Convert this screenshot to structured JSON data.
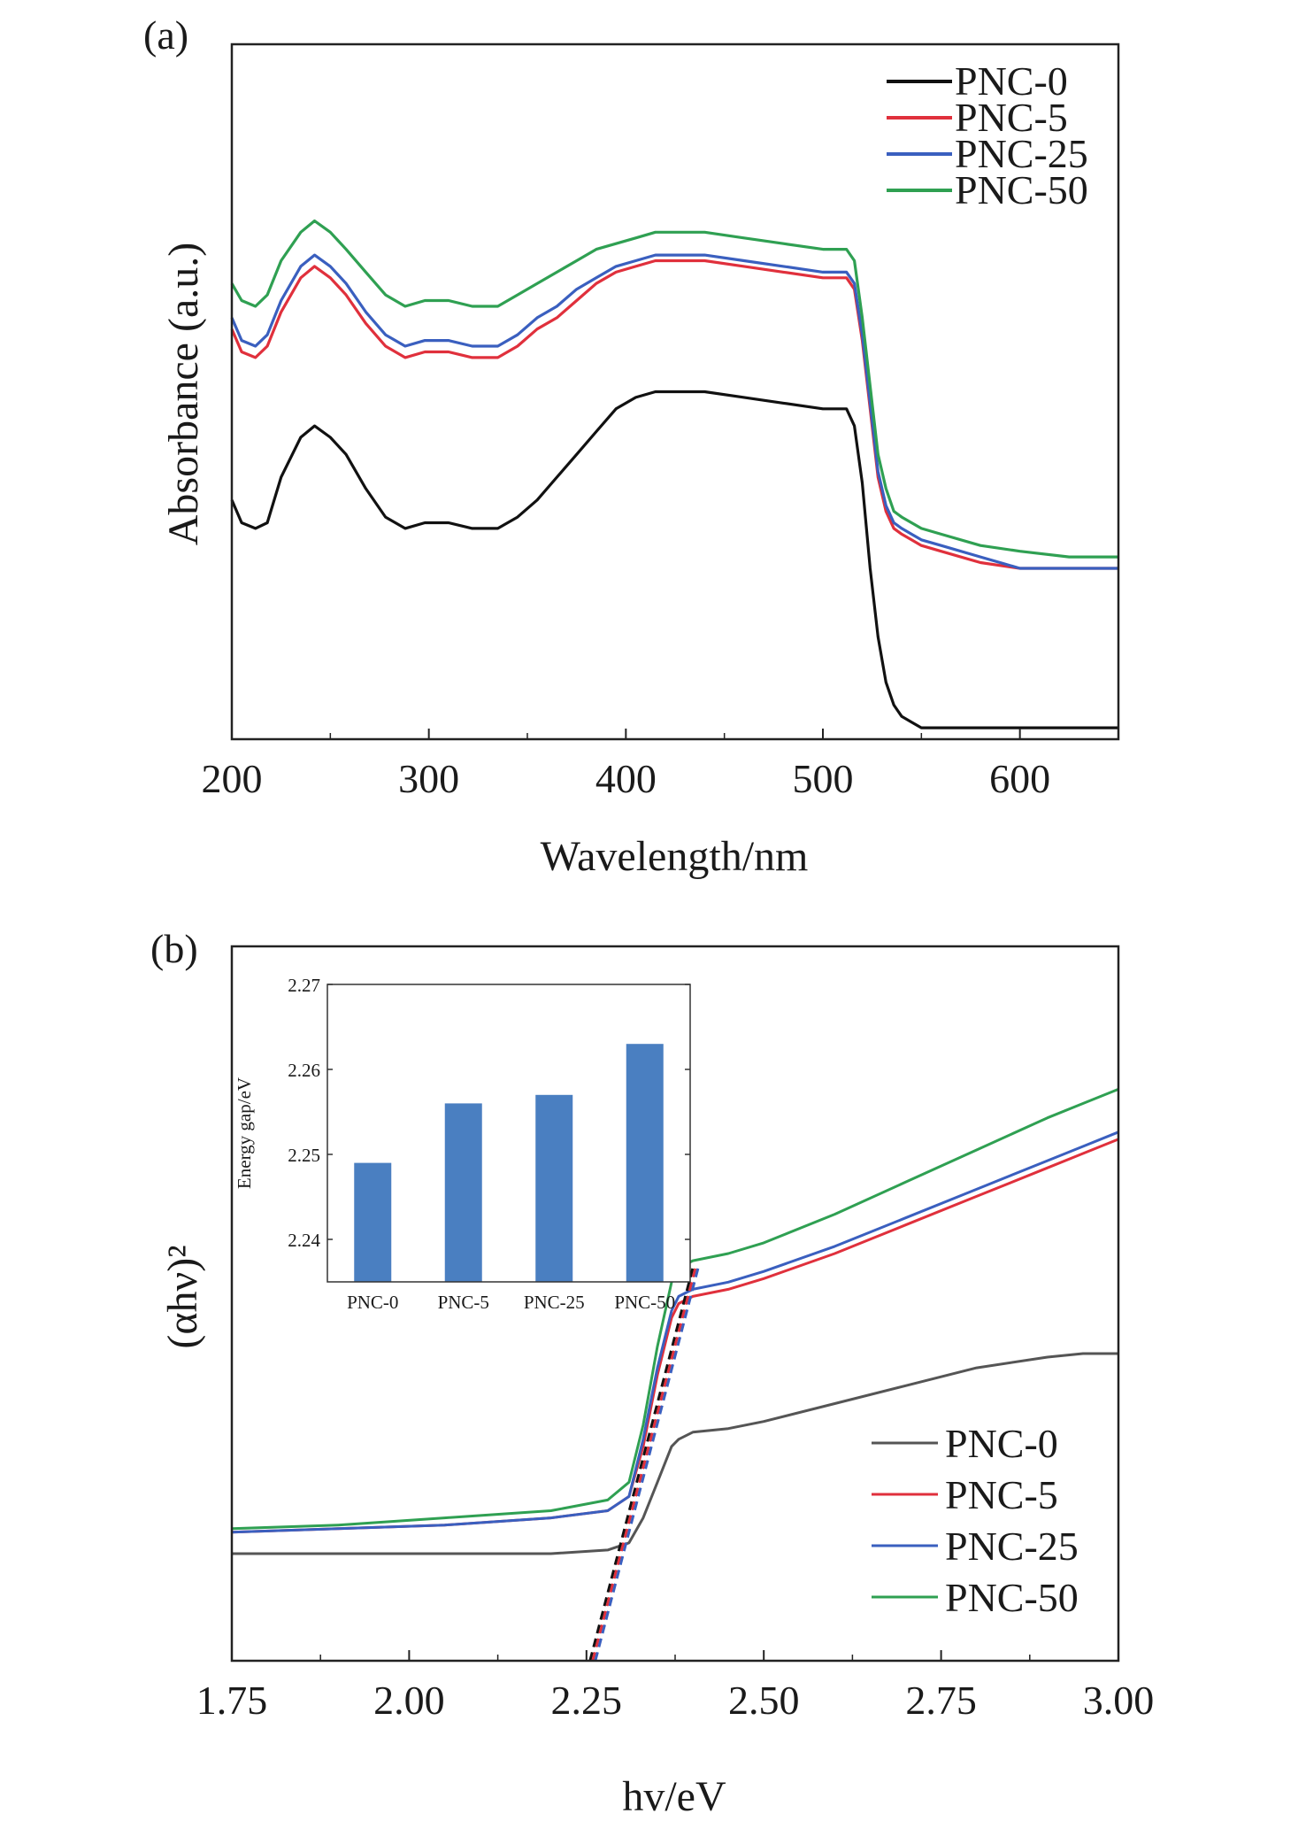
{
  "panel_a_label": "(a)",
  "panel_b_label": "(b)",
  "colors": {
    "pnc0": "#111111",
    "pnc5": "#e0303c",
    "pnc25": "#3a5fbf",
    "pnc50": "#2fa052",
    "pnc0_b": "#555555",
    "bar": "#4a7fc1"
  },
  "chart_data": [
    {
      "type": "line",
      "panel": "a",
      "xlabel": "Wavelength/nm",
      "ylabel": "Absorbance (a.u.)",
      "xlim": [
        200,
        650
      ],
      "ylim": [
        0,
        1.22
      ],
      "xticks": [
        "200",
        "300",
        "400",
        "500",
        "600"
      ],
      "yticks_shown": false,
      "legend_position": "top-right",
      "series": [
        {
          "name": "PNC-0",
          "color": "#111111",
          "x": [
            200,
            205,
            212,
            218,
            225,
            235,
            242,
            250,
            258,
            268,
            278,
            288,
            298,
            310,
            322,
            335,
            345,
            355,
            365,
            375,
            385,
            395,
            405,
            415,
            425,
            440,
            460,
            480,
            500,
            512,
            516,
            520,
            524,
            528,
            532,
            536,
            540,
            545,
            550,
            560,
            580,
            600,
            625,
            650
          ],
          "y": [
            0.42,
            0.38,
            0.37,
            0.38,
            0.46,
            0.53,
            0.55,
            0.53,
            0.5,
            0.44,
            0.39,
            0.37,
            0.38,
            0.38,
            0.37,
            0.37,
            0.39,
            0.42,
            0.46,
            0.5,
            0.54,
            0.58,
            0.6,
            0.61,
            0.61,
            0.61,
            0.6,
            0.59,
            0.58,
            0.58,
            0.55,
            0.45,
            0.3,
            0.18,
            0.1,
            0.06,
            0.04,
            0.03,
            0.02,
            0.02,
            0.02,
            0.02,
            0.02,
            0.02
          ]
        },
        {
          "name": "PNC-5",
          "color": "#e0303c",
          "x": [
            200,
            205,
            212,
            218,
            225,
            235,
            242,
            250,
            258,
            268,
            278,
            288,
            298,
            310,
            322,
            335,
            345,
            355,
            365,
            375,
            385,
            395,
            405,
            415,
            425,
            440,
            460,
            480,
            500,
            512,
            516,
            520,
            524,
            528,
            532,
            536,
            540,
            545,
            550,
            560,
            580,
            600,
            625,
            650
          ],
          "y": [
            0.72,
            0.68,
            0.67,
            0.69,
            0.75,
            0.81,
            0.83,
            0.81,
            0.78,
            0.73,
            0.69,
            0.67,
            0.68,
            0.68,
            0.67,
            0.67,
            0.69,
            0.72,
            0.74,
            0.77,
            0.8,
            0.82,
            0.83,
            0.84,
            0.84,
            0.84,
            0.83,
            0.82,
            0.81,
            0.81,
            0.79,
            0.7,
            0.58,
            0.46,
            0.4,
            0.37,
            0.36,
            0.35,
            0.34,
            0.33,
            0.31,
            0.3,
            0.3,
            0.3
          ]
        },
        {
          "name": "PNC-25",
          "color": "#3a5fbf",
          "x": [
            200,
            205,
            212,
            218,
            225,
            235,
            242,
            250,
            258,
            268,
            278,
            288,
            298,
            310,
            322,
            335,
            345,
            355,
            365,
            375,
            385,
            395,
            405,
            415,
            425,
            440,
            460,
            480,
            500,
            512,
            516,
            520,
            524,
            528,
            532,
            536,
            540,
            545,
            550,
            560,
            580,
            600,
            625,
            650
          ],
          "y": [
            0.74,
            0.7,
            0.69,
            0.71,
            0.77,
            0.83,
            0.85,
            0.83,
            0.8,
            0.75,
            0.71,
            0.69,
            0.7,
            0.7,
            0.69,
            0.69,
            0.71,
            0.74,
            0.76,
            0.79,
            0.81,
            0.83,
            0.84,
            0.85,
            0.85,
            0.85,
            0.84,
            0.83,
            0.82,
            0.82,
            0.8,
            0.71,
            0.59,
            0.47,
            0.41,
            0.38,
            0.37,
            0.36,
            0.35,
            0.34,
            0.32,
            0.3,
            0.3,
            0.3
          ]
        },
        {
          "name": "PNC-50",
          "color": "#2fa052",
          "x": [
            200,
            205,
            212,
            218,
            225,
            235,
            242,
            250,
            258,
            268,
            278,
            288,
            298,
            310,
            322,
            335,
            345,
            355,
            365,
            375,
            385,
            395,
            405,
            415,
            425,
            440,
            460,
            480,
            500,
            512,
            516,
            520,
            524,
            528,
            532,
            536,
            540,
            545,
            550,
            560,
            580,
            600,
            625,
            650
          ],
          "y": [
            0.8,
            0.77,
            0.76,
            0.78,
            0.84,
            0.89,
            0.91,
            0.89,
            0.86,
            0.82,
            0.78,
            0.76,
            0.77,
            0.77,
            0.76,
            0.76,
            0.78,
            0.8,
            0.82,
            0.84,
            0.86,
            0.87,
            0.88,
            0.89,
            0.89,
            0.89,
            0.88,
            0.87,
            0.86,
            0.86,
            0.84,
            0.74,
            0.62,
            0.5,
            0.44,
            0.4,
            0.39,
            0.38,
            0.37,
            0.36,
            0.34,
            0.33,
            0.32,
            0.32
          ]
        }
      ]
    },
    {
      "type": "line",
      "panel": "b",
      "xlabel": "hv/eV",
      "ylabel": "(αhν)²",
      "xlim": [
        1.75,
        3.0
      ],
      "ylim": [
        0,
        1.0
      ],
      "xticks": [
        "1.75",
        "2.00",
        "2.25",
        "2.50",
        "2.75",
        "3.00"
      ],
      "yticks_shown": false,
      "legend_position": "bottom-right",
      "series": [
        {
          "name": "PNC-0",
          "color": "#555555",
          "x": [
            1.75,
            1.9,
            2.05,
            2.2,
            2.28,
            2.31,
            2.33,
            2.35,
            2.37,
            2.38,
            2.4,
            2.45,
            2.5,
            2.6,
            2.7,
            2.8,
            2.9,
            2.95,
            3.0
          ],
          "y": [
            0.15,
            0.15,
            0.15,
            0.15,
            0.155,
            0.165,
            0.2,
            0.25,
            0.3,
            0.31,
            0.32,
            0.325,
            0.335,
            0.36,
            0.385,
            0.41,
            0.425,
            0.43,
            0.43
          ]
        },
        {
          "name": "PNC-5",
          "color": "#e0303c",
          "x": [
            1.75,
            1.9,
            2.05,
            2.2,
            2.28,
            2.31,
            2.33,
            2.35,
            2.37,
            2.38,
            2.4,
            2.45,
            2.5,
            2.6,
            2.7,
            2.8,
            2.9,
            2.95,
            3.0
          ],
          "y": [
            0.18,
            0.185,
            0.19,
            0.2,
            0.21,
            0.23,
            0.3,
            0.4,
            0.48,
            0.5,
            0.51,
            0.52,
            0.535,
            0.57,
            0.61,
            0.65,
            0.69,
            0.71,
            0.73
          ]
        },
        {
          "name": "PNC-25",
          "color": "#3a5fbf",
          "x": [
            1.75,
            1.9,
            2.05,
            2.2,
            2.28,
            2.31,
            2.33,
            2.35,
            2.37,
            2.38,
            2.4,
            2.45,
            2.5,
            2.6,
            2.7,
            2.8,
            2.9,
            2.95,
            3.0
          ],
          "y": [
            0.18,
            0.185,
            0.19,
            0.2,
            0.21,
            0.23,
            0.31,
            0.41,
            0.49,
            0.51,
            0.52,
            0.53,
            0.545,
            0.58,
            0.62,
            0.66,
            0.7,
            0.72,
            0.74
          ]
        },
        {
          "name": "PNC-50",
          "color": "#2fa052",
          "x": [
            1.75,
            1.9,
            2.05,
            2.2,
            2.28,
            2.31,
            2.33,
            2.35,
            2.37,
            2.38,
            2.4,
            2.45,
            2.5,
            2.6,
            2.7,
            2.8,
            2.9,
            2.95,
            3.0
          ],
          "y": [
            0.185,
            0.19,
            0.2,
            0.21,
            0.225,
            0.25,
            0.33,
            0.44,
            0.53,
            0.55,
            0.56,
            0.57,
            0.585,
            0.625,
            0.67,
            0.715,
            0.76,
            0.78,
            0.8
          ]
        }
      ],
      "fit_lines": [
        {
          "x": [
            2.255,
            2.4
          ],
          "y": [
            0,
            0.55
          ]
        }
      ]
    },
    {
      "type": "bar",
      "panel": "b-inset",
      "ylabel": "Energy gap/eV",
      "categories": [
        "PNC-0",
        "PNC-5",
        "PNC-25",
        "PNC-50"
      ],
      "values": [
        2.249,
        2.256,
        2.257,
        2.263
      ],
      "ylim": [
        2.235,
        2.27
      ],
      "yticks": [
        "2.24",
        "2.25",
        "2.26",
        "2.27"
      ],
      "color": "#4a7fc1"
    }
  ]
}
